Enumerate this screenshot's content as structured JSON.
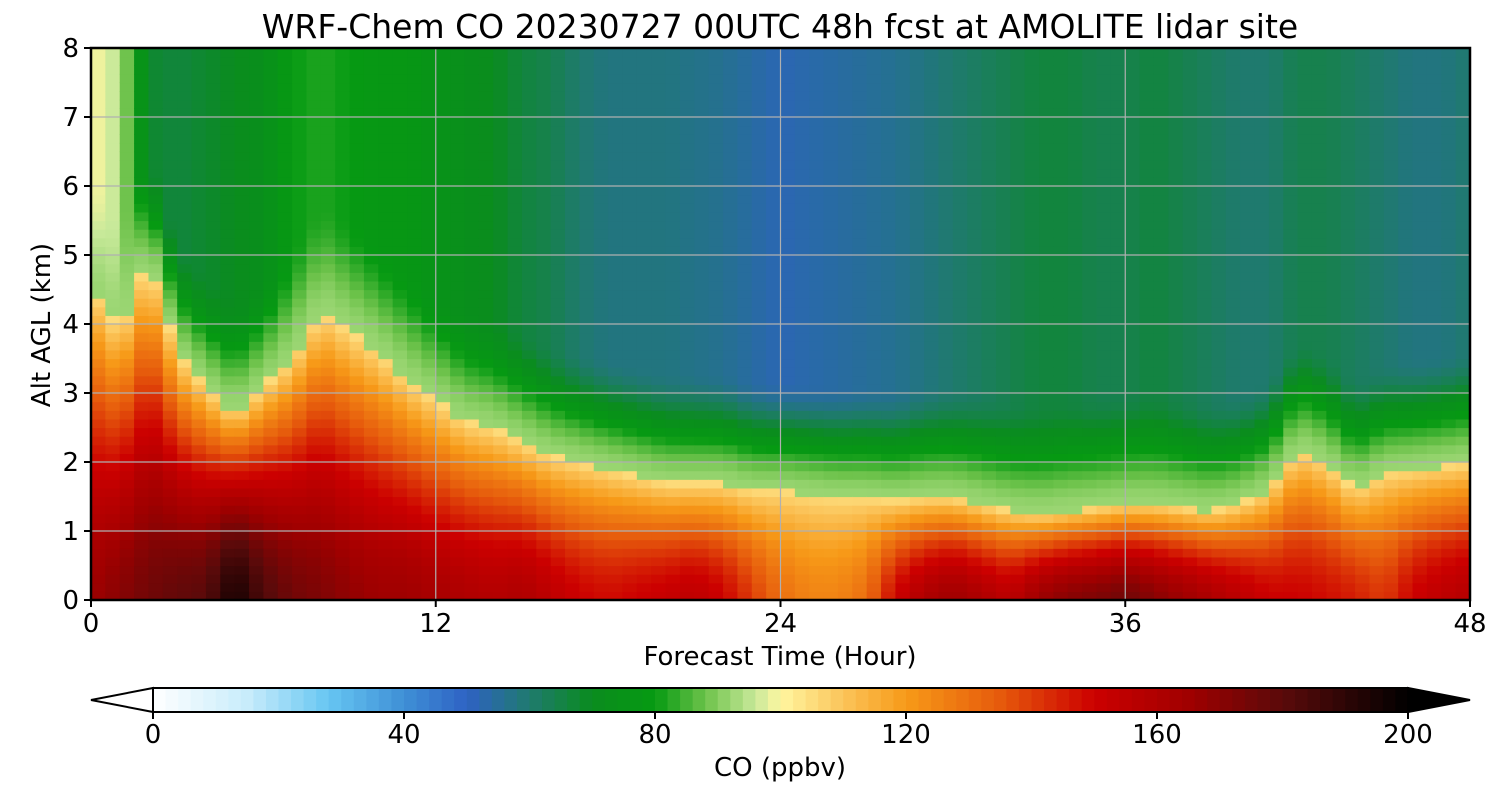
{
  "chart_data": {
    "type": "heatmap",
    "title": "WRF-Chem CO  20230727 00UTC 48h fcst at AMOLITE lidar site",
    "xlabel": "Forecast Time (Hour)",
    "ylabel": "Alt AGL (km)",
    "xlim": [
      0,
      48
    ],
    "ylim": [
      0,
      8
    ],
    "xticks": [
      0,
      12,
      24,
      36,
      48
    ],
    "yticks": [
      0,
      1,
      2,
      3,
      4,
      5,
      6,
      7,
      8
    ],
    "grid": true,
    "x": [
      0,
      1,
      2,
      3,
      4,
      5,
      6,
      7,
      8,
      9,
      10,
      11,
      12,
      13,
      14,
      15,
      16,
      17,
      18,
      19,
      20,
      21,
      22,
      23,
      24,
      25,
      26,
      27,
      28,
      29,
      30,
      31,
      32,
      33,
      34,
      35,
      36,
      37,
      38,
      39,
      40,
      41,
      42,
      43,
      44,
      45,
      46,
      47,
      48
    ],
    "boundary_layer_top_km": [
      4.6,
      3.9,
      5.0,
      3.6,
      3.1,
      2.7,
      3.1,
      3.5,
      4.2,
      3.9,
      3.6,
      3.2,
      2.9,
      2.6,
      2.5,
      2.3,
      2.1,
      2.0,
      1.9,
      1.8,
      1.7,
      1.7,
      1.7,
      1.6,
      1.6,
      1.55,
      1.5,
      1.5,
      1.45,
      1.5,
      1.5,
      1.4,
      1.3,
      1.25,
      1.3,
      1.35,
      1.4,
      1.4,
      1.35,
      1.3,
      1.4,
      1.6,
      2.2,
      2.0,
      1.6,
      1.85,
      1.9,
      1.95,
      2.0
    ],
    "near_surface_ppbv": [
      165,
      170,
      175,
      178,
      180,
      195,
      182,
      175,
      172,
      168,
      165,
      165,
      162,
      160,
      158,
      160,
      155,
      150,
      148,
      150,
      152,
      155,
      150,
      140,
      130,
      125,
      125,
      130,
      150,
      160,
      165,
      160,
      155,
      165,
      170,
      172,
      175,
      170,
      165,
      160,
      155,
      150,
      150,
      148,
      145,
      140,
      150,
      155,
      158
    ],
    "upper_layer_ppbv": [
      100,
      95,
      68,
      66,
      68,
      70,
      72,
      80,
      82,
      80,
      78,
      78,
      75,
      72,
      70,
      66,
      64,
      60,
      58,
      58,
      58,
      57,
      56,
      54,
      52,
      53,
      54,
      55,
      56,
      58,
      60,
      62,
      64,
      66,
      66,
      64,
      64,
      66,
      64,
      62,
      60,
      60,
      64,
      64,
      62,
      60,
      58,
      58,
      60
    ],
    "colorbar": {
      "label": "CO  (ppbv)",
      "range": [
        0,
        200
      ],
      "ticks": [
        0,
        40,
        80,
        120,
        160,
        200
      ],
      "extend": "both",
      "stops": [
        {
          "v": 0,
          "c": "#ffffff"
        },
        {
          "v": 15,
          "c": "#c8ecfb"
        },
        {
          "v": 28,
          "c": "#66c6f2"
        },
        {
          "v": 40,
          "c": "#3f8fd6"
        },
        {
          "v": 50,
          "c": "#2e62c4"
        },
        {
          "v": 60,
          "c": "#1f7a6e"
        },
        {
          "v": 70,
          "c": "#0a8c1e"
        },
        {
          "v": 80,
          "c": "#069a12"
        },
        {
          "v": 88,
          "c": "#6cc24a"
        },
        {
          "v": 96,
          "c": "#c8e99a"
        },
        {
          "v": 100,
          "c": "#fff6a0"
        },
        {
          "v": 110,
          "c": "#fbc45a"
        },
        {
          "v": 120,
          "c": "#f79a18"
        },
        {
          "v": 135,
          "c": "#e65a0c"
        },
        {
          "v": 150,
          "c": "#cc0000"
        },
        {
          "v": 165,
          "c": "#a00000"
        },
        {
          "v": 180,
          "c": "#5a0a0a"
        },
        {
          "v": 200,
          "c": "#000000"
        }
      ]
    }
  }
}
